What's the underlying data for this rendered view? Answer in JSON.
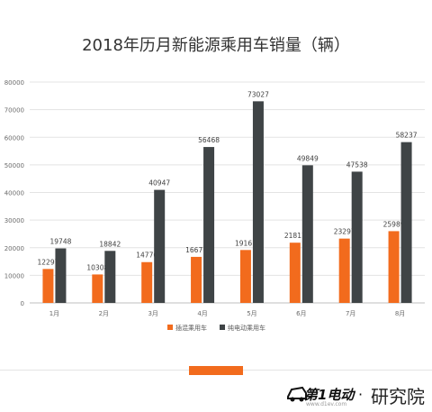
{
  "chart_data": {
    "type": "bar",
    "title": "2018年历月新能源乘用车销量（辆）",
    "categories": [
      "1月",
      "2月",
      "3月",
      "4月",
      "5月",
      "6月",
      "7月",
      "8月"
    ],
    "series": [
      {
        "name": "插混乘用车",
        "color": "#f26b1d",
        "values": [
          12297,
          10308,
          14776,
          16677,
          19161,
          21811,
          23297,
          25989
        ]
      },
      {
        "name": "纯电动乘用车",
        "color": "#3f4446",
        "values": [
          19748,
          18842,
          40947,
          56468,
          73027,
          49849,
          47538,
          58237
        ]
      }
    ],
    "yticks": [
      0,
      10000,
      20000,
      30000,
      40000,
      50000,
      60000,
      70000,
      80000
    ],
    "ylim": [
      0,
      80000
    ],
    "grid": true,
    "legend_position": "bottom-center"
  },
  "brand": {
    "name": "第1电动",
    "sub": "www.d1ev.com",
    "dot": "·",
    "unit": "研究院"
  }
}
